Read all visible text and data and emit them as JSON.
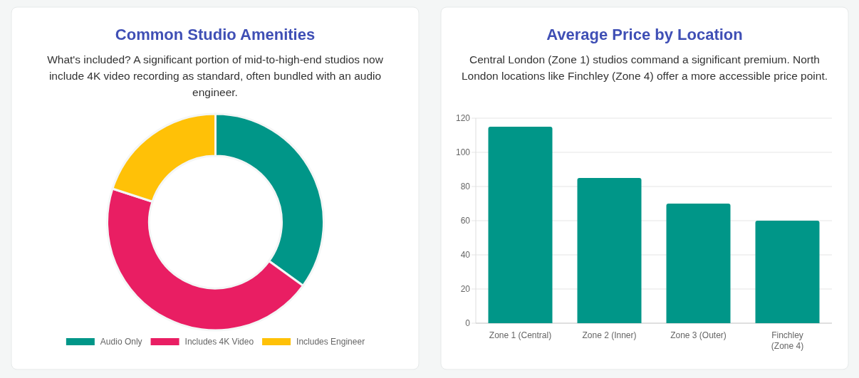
{
  "chart_data": [
    {
      "type": "donut",
      "title": "Common Studio Amenities",
      "subtitle": "What's included? A significant portion of mid-to-high-end studios now include 4K video recording as standard, often bundled with an audio engineer.",
      "categories": [
        "Audio Only",
        "Includes 4K Video",
        "Includes Engineer"
      ],
      "values": [
        35,
        45,
        20
      ],
      "colors": [
        "#009688",
        "#e91e63",
        "#ffc107"
      ],
      "legend": "bottom"
    },
    {
      "type": "bar",
      "title": "Average Price by Location",
      "subtitle": "Central London (Zone 1) studios command a significant premium. North London locations like Finchley (Zone 4) offer a more accessible price point.",
      "categories": [
        "Zone 1 (Central)",
        "Zone 2 (Inner)",
        "Zone 3 (Outer)",
        "Finchley\n(Zone 4)"
      ],
      "values": [
        115,
        85,
        70,
        60
      ],
      "color": "#009688",
      "ylim": [
        0,
        120
      ],
      "yticks": [
        0,
        20,
        40,
        60,
        80,
        100,
        120
      ],
      "grid": "y"
    }
  ]
}
